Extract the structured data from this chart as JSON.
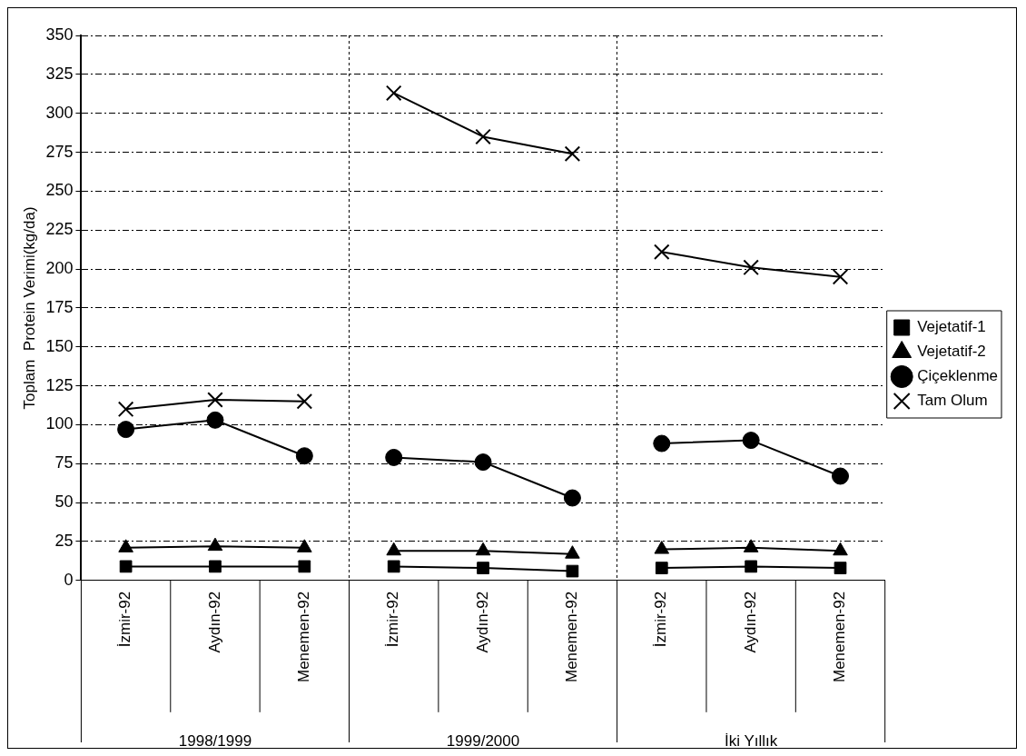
{
  "chart_data": {
    "type": "line",
    "ylabel": "Toplam  Protein Verimi(kg/da)",
    "categories": [
      "İzmir-92",
      "Aydın-92",
      "Menemen-92",
      "İzmir-92",
      "Aydın-92",
      "Menemen-92",
      "İzmir-92",
      "Aydın-92",
      "Menemen-92"
    ],
    "annotations": [
      "1998/1999",
      "1999/2000",
      "İki Yıllık"
    ],
    "series": [
      {
        "name": "Vejetatif-1",
        "color": "#000000",
        "marker": "square",
        "values": [
          9,
          9,
          9,
          9,
          8,
          6,
          8,
          9,
          8
        ]
      },
      {
        "name": "Vejetatif-2",
        "color": "#000000",
        "marker": "triangle",
        "values": [
          21,
          22,
          21,
          19,
          19,
          17,
          20,
          21,
          19
        ]
      },
      {
        "name": "Çiçeklenme",
        "color": "#000000",
        "marker": "circle",
        "values": [
          97,
          103,
          80,
          79,
          76,
          53,
          88,
          90,
          67
        ]
      },
      {
        "name": "Tam Olum",
        "color": "#000000",
        "marker": "cross",
        "values": [
          110,
          116,
          115,
          313,
          285,
          274,
          211,
          201,
          195
        ]
      }
    ],
    "ylim": [
      0,
      350
    ],
    "yticks": [
      0,
      25,
      50,
      75,
      100,
      125,
      150,
      175,
      200,
      225,
      250,
      275,
      300,
      325,
      350
    ],
    "grid": "y",
    "legend": "right",
    "line_style": "solid"
  }
}
